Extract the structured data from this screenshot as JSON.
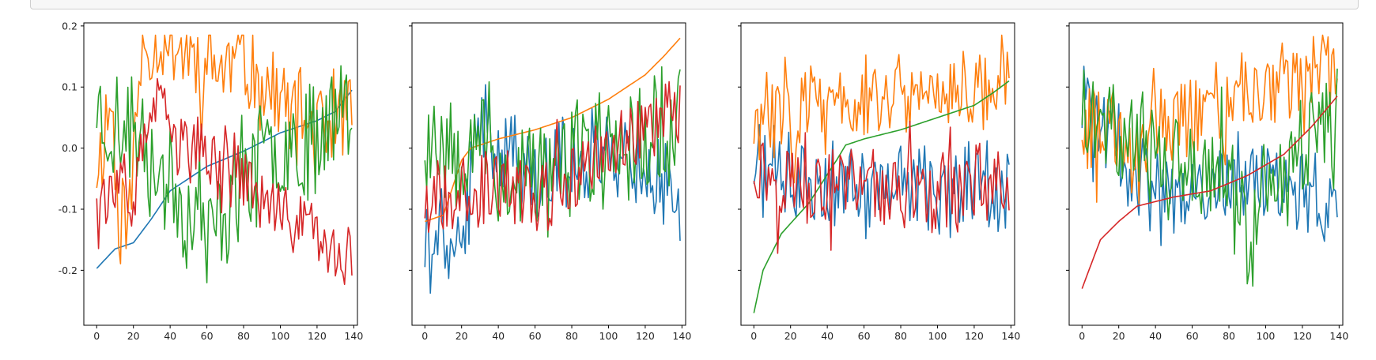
{
  "colors": {
    "blue": "#1f77b4",
    "orange": "#ff7f0e",
    "green": "#2ca02c",
    "red": "#d62728"
  },
  "chart_data": [
    {
      "type": "line",
      "title": "",
      "xlabel": "",
      "ylabel": "",
      "xlim": [
        -7,
        142
      ],
      "ylim": [
        -0.29,
        0.205
      ],
      "xticks": [
        "0",
        "20",
        "40",
        "60",
        "80",
        "100",
        "120",
        "140"
      ],
      "xtick_values": [
        0,
        20,
        40,
        60,
        80,
        100,
        120,
        140
      ],
      "yticks": [
        "0.2",
        "0.1",
        "0.0",
        "-0.1",
        "-0.2"
      ],
      "ytick_values": [
        0.2,
        0.1,
        0.0,
        -0.1,
        -0.2
      ],
      "show_ytick_labels": true,
      "sorted_series": "blue",
      "series": [
        {
          "name": "blue",
          "color": "blue",
          "anchors": [
            [
              0,
              -0.197
            ],
            [
              10,
              -0.165
            ],
            [
              20,
              -0.155
            ],
            [
              30,
              -0.115
            ],
            [
              40,
              -0.07
            ],
            [
              60,
              -0.03
            ],
            [
              80,
              -0.005
            ],
            [
              100,
              0.025
            ],
            [
              120,
              0.045
            ],
            [
              130,
              0.06
            ],
            [
              139,
              0.095
            ]
          ]
        },
        {
          "name": "orange",
          "color": "orange",
          "anchors": [
            [
              0,
              -0.03
            ],
            [
              8,
              0.075
            ],
            [
              12,
              -0.11
            ],
            [
              18,
              -0.1
            ],
            [
              25,
              0.175
            ],
            [
              40,
              0.18
            ],
            [
              60,
              0.13
            ],
            [
              80,
              0.14
            ],
            [
              100,
              0.08
            ],
            [
              120,
              0.03
            ],
            [
              139,
              0.055
            ]
          ],
          "amp": 0.09,
          "seed": 11
        },
        {
          "name": "green",
          "color": "green",
          "anchors": [
            [
              0,
              0.075
            ],
            [
              10,
              0.03
            ],
            [
              20,
              0.02
            ],
            [
              40,
              -0.05
            ],
            [
              60,
              -0.15
            ],
            [
              80,
              -0.05
            ],
            [
              100,
              0.0
            ],
            [
              120,
              0.03
            ],
            [
              139,
              0.105
            ]
          ],
          "amp": 0.11,
          "seed": 23
        },
        {
          "name": "red",
          "color": "red",
          "anchors": [
            [
              0,
              -0.06
            ],
            [
              10,
              -0.085
            ],
            [
              20,
              -0.08
            ],
            [
              30,
              0.07
            ],
            [
              50,
              0.0
            ],
            [
              80,
              -0.05
            ],
            [
              100,
              -0.12
            ],
            [
              120,
              -0.12
            ],
            [
              132,
              -0.2
            ],
            [
              139,
              -0.175
            ]
          ],
          "amp": 0.06,
          "seed": 37
        }
      ]
    },
    {
      "type": "line",
      "title": "",
      "xlabel": "",
      "ylabel": "",
      "xlim": [
        -7,
        142
      ],
      "ylim": [
        -0.29,
        0.205
      ],
      "xticks": [
        "0",
        "20",
        "40",
        "60",
        "80",
        "100",
        "120",
        "140"
      ],
      "xtick_values": [
        0,
        20,
        40,
        60,
        80,
        100,
        120,
        140
      ],
      "yticks": [],
      "ytick_values": [
        0.2,
        0.1,
        0.0,
        -0.1,
        -0.2
      ],
      "show_ytick_labels": false,
      "sorted_series": "orange",
      "series": [
        {
          "name": "blue",
          "color": "blue",
          "anchors": [
            [
              0,
              -0.165
            ],
            [
              15,
              -0.14
            ],
            [
              20,
              -0.17
            ],
            [
              30,
              0.04
            ],
            [
              40,
              0.02
            ],
            [
              60,
              -0.05
            ],
            [
              80,
              -0.02
            ],
            [
              100,
              0.0
            ],
            [
              120,
              -0.03
            ],
            [
              130,
              -0.07
            ],
            [
              139,
              -0.075
            ]
          ],
          "amp": 0.08,
          "seed": 41
        },
        {
          "name": "orange",
          "color": "orange",
          "anchors": [
            [
              0,
              -0.12
            ],
            [
              10,
              -0.11
            ],
            [
              20,
              -0.02
            ],
            [
              25,
              0.0
            ],
            [
              40,
              0.015
            ],
            [
              60,
              0.03
            ],
            [
              80,
              0.05
            ],
            [
              100,
              0.08
            ],
            [
              120,
              0.12
            ],
            [
              130,
              0.15
            ],
            [
              139,
              0.18
            ]
          ]
        },
        {
          "name": "green",
          "color": "green",
          "anchors": [
            [
              0,
              0.02
            ],
            [
              10,
              0.02
            ],
            [
              20,
              0.01
            ],
            [
              30,
              0.05
            ],
            [
              40,
              -0.05
            ],
            [
              60,
              -0.05
            ],
            [
              80,
              -0.02
            ],
            [
              100,
              0.0
            ],
            [
              120,
              0.02
            ],
            [
              139,
              0.045
            ]
          ],
          "amp": 0.11,
          "seed": 53
        },
        {
          "name": "red",
          "color": "red",
          "anchors": [
            [
              0,
              -0.09
            ],
            [
              10,
              -0.085
            ],
            [
              20,
              -0.04
            ],
            [
              30,
              -0.08
            ],
            [
              40,
              -0.06
            ],
            [
              60,
              -0.08
            ],
            [
              80,
              -0.05
            ],
            [
              100,
              0.0
            ],
            [
              120,
              0.03
            ],
            [
              139,
              0.05
            ]
          ],
          "amp": 0.07,
          "seed": 67
        }
      ]
    },
    {
      "type": "line",
      "title": "",
      "xlabel": "",
      "ylabel": "",
      "xlim": [
        -7,
        142
      ],
      "ylim": [
        -0.29,
        0.205
      ],
      "xticks": [
        "0",
        "20",
        "40",
        "60",
        "80",
        "100",
        "120",
        "140"
      ],
      "xtick_values": [
        0,
        20,
        40,
        60,
        80,
        100,
        120,
        140
      ],
      "yticks": [],
      "ytick_values": [
        0.2,
        0.1,
        0.0,
        -0.1,
        -0.2
      ],
      "show_ytick_labels": false,
      "sorted_series": "green",
      "series": [
        {
          "name": "blue",
          "color": "blue",
          "anchors": [
            [
              0,
              -0.03
            ],
            [
              20,
              -0.05
            ],
            [
              40,
              -0.05
            ],
            [
              60,
              -0.07
            ],
            [
              80,
              -0.05
            ],
            [
              100,
              -0.07
            ],
            [
              120,
              -0.06
            ],
            [
              139,
              -0.05
            ]
          ],
          "amp": 0.08,
          "seed": 71
        },
        {
          "name": "orange",
          "color": "orange",
          "anchors": [
            [
              0,
              0.035
            ],
            [
              20,
              0.08
            ],
            [
              40,
              0.06
            ],
            [
              60,
              0.08
            ],
            [
              80,
              0.09
            ],
            [
              100,
              0.1
            ],
            [
              120,
              0.1
            ],
            [
              139,
              0.13
            ]
          ],
          "amp": 0.08,
          "seed": 83
        },
        {
          "name": "green",
          "color": "green",
          "anchors": [
            [
              0,
              -0.27
            ],
            [
              5,
              -0.2
            ],
            [
              15,
              -0.14
            ],
            [
              30,
              -0.09
            ],
            [
              45,
              -0.02
            ],
            [
              50,
              0.005
            ],
            [
              60,
              0.015
            ],
            [
              80,
              0.03
            ],
            [
              100,
              0.05
            ],
            [
              120,
              0.07
            ],
            [
              130,
              0.09
            ],
            [
              139,
              0.11
            ]
          ]
        },
        {
          "name": "red",
          "color": "red",
          "anchors": [
            [
              0,
              -0.03
            ],
            [
              20,
              -0.05
            ],
            [
              40,
              -0.07
            ],
            [
              60,
              -0.06
            ],
            [
              80,
              -0.07
            ],
            [
              100,
              -0.08
            ],
            [
              120,
              -0.06
            ],
            [
              139,
              -0.05
            ]
          ],
          "amp": 0.07,
          "seed": 97
        }
      ]
    },
    {
      "type": "line",
      "title": "",
      "xlabel": "",
      "ylabel": "",
      "xlim": [
        -7,
        142
      ],
      "ylim": [
        -0.29,
        0.205
      ],
      "xticks": [
        "0",
        "20",
        "40",
        "60",
        "80",
        "100",
        "120",
        "140"
      ],
      "xtick_values": [
        0,
        20,
        40,
        60,
        80,
        100,
        120,
        140
      ],
      "yticks": [],
      "ytick_values": [
        0.2,
        0.1,
        0.0,
        -0.1,
        -0.2
      ],
      "show_ytick_labels": false,
      "sorted_series": "red",
      "series": [
        {
          "name": "blue",
          "color": "blue",
          "anchors": [
            [
              0,
              0.06
            ],
            [
              20,
              0.02
            ],
            [
              30,
              -0.05
            ],
            [
              40,
              -0.08
            ],
            [
              60,
              -0.08
            ],
            [
              80,
              -0.06
            ],
            [
              100,
              -0.05
            ],
            [
              120,
              -0.06
            ],
            [
              130,
              -0.1
            ],
            [
              139,
              -0.095
            ]
          ],
          "amp": 0.08,
          "seed": 101
        },
        {
          "name": "orange",
          "color": "orange",
          "anchors": [
            [
              0,
              0.04
            ],
            [
              20,
              0.03
            ],
            [
              30,
              -0.02
            ],
            [
              40,
              0.06
            ],
            [
              60,
              0.06
            ],
            [
              80,
              0.08
            ],
            [
              100,
              0.09
            ],
            [
              120,
              0.12
            ],
            [
              139,
              0.13
            ]
          ],
          "amp": 0.08,
          "seed": 113
        },
        {
          "name": "green",
          "color": "green",
          "anchors": [
            [
              0,
              0.07
            ],
            [
              10,
              0.09
            ],
            [
              20,
              0.02
            ],
            [
              40,
              0.0
            ],
            [
              60,
              -0.05
            ],
            [
              80,
              -0.05
            ],
            [
              90,
              -0.15
            ],
            [
              100,
              -0.07
            ],
            [
              120,
              0.0
            ],
            [
              139,
              0.035
            ]
          ],
          "amp": 0.1,
          "seed": 127
        },
        {
          "name": "red",
          "color": "red",
          "anchors": [
            [
              0,
              -0.23
            ],
            [
              10,
              -0.15
            ],
            [
              20,
              -0.12
            ],
            [
              30,
              -0.095
            ],
            [
              50,
              -0.08
            ],
            [
              70,
              -0.07
            ],
            [
              90,
              -0.045
            ],
            [
              110,
              -0.01
            ],
            [
              125,
              0.035
            ],
            [
              139,
              0.085
            ]
          ]
        }
      ]
    }
  ]
}
